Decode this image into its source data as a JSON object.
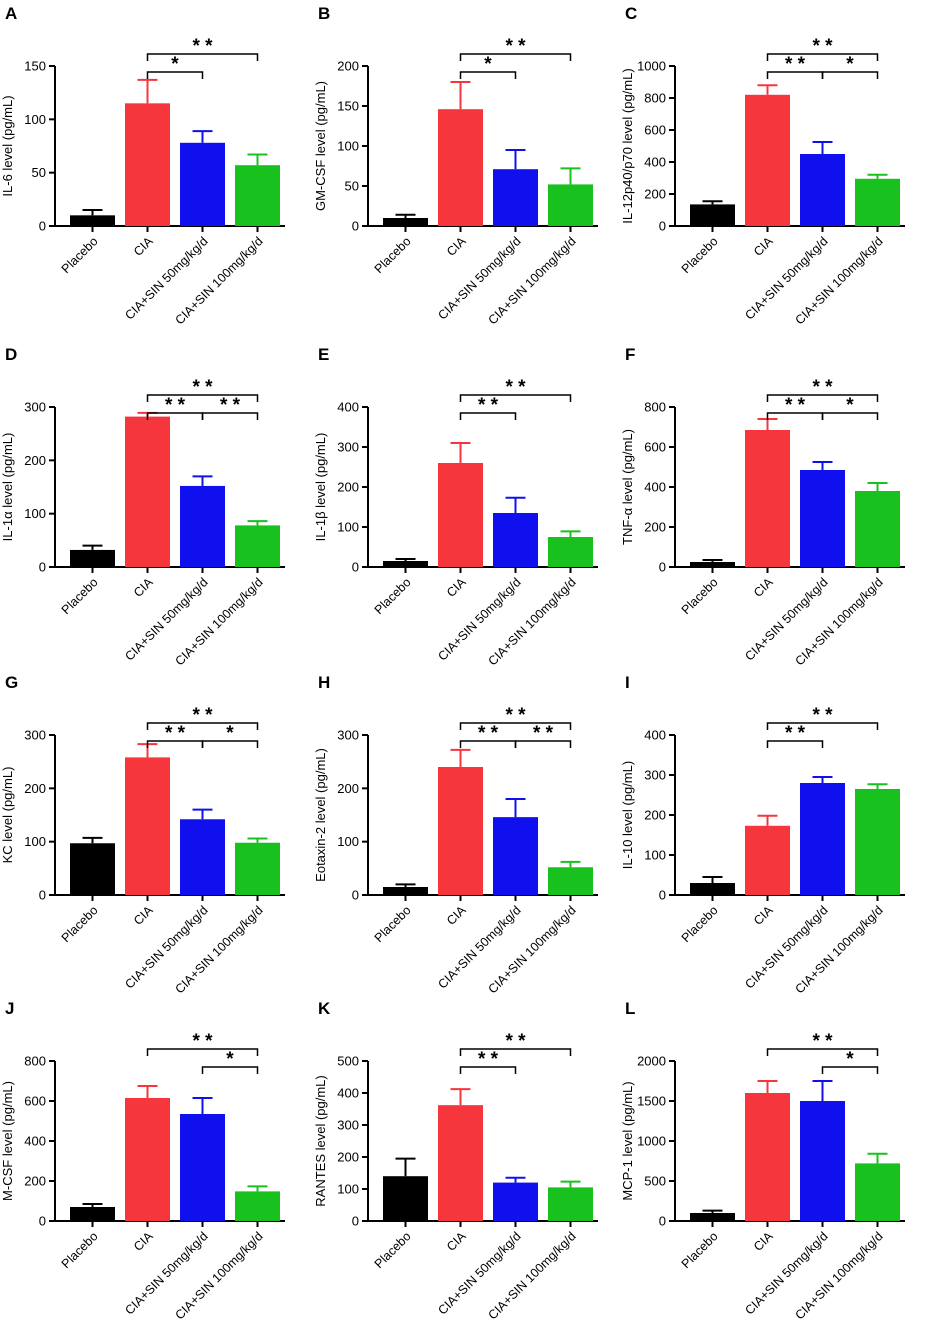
{
  "categories": [
    "Placebo",
    "CIA",
    "CIA+SIN 50mg/kg/d",
    "CIA+SIN 100mg/kg/d"
  ],
  "colors": [
    "#000000",
    "#f5373d",
    "#1010ee",
    "#18c11e"
  ],
  "chart_data": [
    {
      "type": "bar",
      "panel": "A",
      "ylabel": "IL-6 level (pg/mL)",
      "ylim": [
        0,
        150
      ],
      "ticks": [
        0,
        50,
        100,
        150
      ],
      "values": [
        10,
        115,
        78,
        57
      ],
      "errors": [
        5,
        22,
        11,
        10
      ],
      "significance": [
        {
          "from": 1,
          "to": 2,
          "label": "*"
        },
        {
          "from": 1,
          "to": 3,
          "label": "* *"
        }
      ]
    },
    {
      "type": "bar",
      "panel": "B",
      "ylabel": "GM-CSF level (pg/mL)",
      "ylim": [
        0,
        200
      ],
      "ticks": [
        0,
        50,
        100,
        150,
        200
      ],
      "values": [
        10,
        146,
        71,
        52
      ],
      "errors": [
        4,
        34,
        24,
        20
      ],
      "significance": [
        {
          "from": 1,
          "to": 2,
          "label": "*"
        },
        {
          "from": 1,
          "to": 3,
          "label": "* *"
        }
      ]
    },
    {
      "type": "bar",
      "panel": "C",
      "ylabel": "IL-12p40/p70 level (pg/mL)",
      "ylim": [
        0,
        1000
      ],
      "ticks": [
        0,
        200,
        400,
        600,
        800,
        1000
      ],
      "values": [
        135,
        820,
        450,
        295
      ],
      "errors": [
        20,
        60,
        75,
        25
      ],
      "significance": [
        {
          "from": 1,
          "to": 2,
          "label": "* *"
        },
        {
          "from": 2,
          "to": 3,
          "label": "*"
        },
        {
          "from": 1,
          "to": 3,
          "label": "* *"
        }
      ]
    },
    {
      "type": "bar",
      "panel": "D",
      "ylabel": "IL-1α level (pg/mL)",
      "ylim": [
        0,
        300
      ],
      "ticks": [
        0,
        100,
        200,
        300
      ],
      "values": [
        32,
        282,
        152,
        78
      ],
      "errors": [
        8,
        7,
        18,
        8
      ],
      "significance": [
        {
          "from": 1,
          "to": 2,
          "label": "* *"
        },
        {
          "from": 2,
          "to": 3,
          "label": "* *"
        },
        {
          "from": 1,
          "to": 3,
          "label": "* *"
        }
      ]
    },
    {
      "type": "bar",
      "panel": "E",
      "ylabel": "IL-1β level (pg/mL)",
      "ylim": [
        0,
        400
      ],
      "ticks": [
        0,
        100,
        200,
        300,
        400
      ],
      "values": [
        15,
        260,
        135,
        75
      ],
      "errors": [
        5,
        50,
        38,
        14
      ],
      "significance": [
        {
          "from": 1,
          "to": 2,
          "label": "* *"
        },
        {
          "from": 1,
          "to": 3,
          "label": "* *"
        }
      ]
    },
    {
      "type": "bar",
      "panel": "F",
      "ylabel": "TNF-α level (pg/mL)",
      "ylim": [
        0,
        800
      ],
      "ticks": [
        0,
        200,
        400,
        600,
        800
      ],
      "values": [
        25,
        685,
        485,
        380
      ],
      "errors": [
        10,
        55,
        40,
        40
      ],
      "significance": [
        {
          "from": 1,
          "to": 2,
          "label": "* *"
        },
        {
          "from": 2,
          "to": 3,
          "label": "*"
        },
        {
          "from": 1,
          "to": 3,
          "label": "* *"
        }
      ]
    },
    {
      "type": "bar",
      "panel": "G",
      "ylabel": "KC level (pg/mL)",
      "ylim": [
        0,
        300
      ],
      "ticks": [
        0,
        100,
        200,
        300
      ],
      "values": [
        97,
        258,
        142,
        98
      ],
      "errors": [
        10,
        25,
        18,
        8
      ],
      "significance": [
        {
          "from": 1,
          "to": 2,
          "label": "* *"
        },
        {
          "from": 2,
          "to": 3,
          "label": "*"
        },
        {
          "from": 1,
          "to": 3,
          "label": "* *"
        }
      ]
    },
    {
      "type": "bar",
      "panel": "H",
      "ylabel": "Eotaxin-2 level (pg/mL)",
      "ylim": [
        0,
        300
      ],
      "ticks": [
        0,
        100,
        200,
        300
      ],
      "values": [
        15,
        240,
        146,
        52
      ],
      "errors": [
        5,
        32,
        34,
        10
      ],
      "significance": [
        {
          "from": 1,
          "to": 2,
          "label": "* *"
        },
        {
          "from": 2,
          "to": 3,
          "label": "* *"
        },
        {
          "from": 1,
          "to": 3,
          "label": "* *"
        }
      ]
    },
    {
      "type": "bar",
      "panel": "I",
      "ylabel": "IL-10 level (pg/mL)",
      "ylim": [
        0,
        400
      ],
      "ticks": [
        0,
        100,
        200,
        300,
        400
      ],
      "values": [
        30,
        173,
        280,
        265
      ],
      "errors": [
        15,
        25,
        15,
        12
      ],
      "significance": [
        {
          "from": 1,
          "to": 2,
          "label": "* *"
        },
        {
          "from": 1,
          "to": 3,
          "label": "* *"
        }
      ]
    },
    {
      "type": "bar",
      "panel": "J",
      "ylabel": "M-CSF level (pg/mL)",
      "ylim": [
        0,
        800
      ],
      "ticks": [
        0,
        200,
        400,
        600,
        800
      ],
      "values": [
        70,
        615,
        535,
        148
      ],
      "errors": [
        15,
        60,
        80,
        25
      ],
      "significance": [
        {
          "from": 2,
          "to": 3,
          "label": "*"
        },
        {
          "from": 1,
          "to": 3,
          "label": "* *"
        }
      ]
    },
    {
      "type": "bar",
      "panel": "K",
      "ylabel": "RANTES level (pg/mL)",
      "ylim": [
        0,
        500
      ],
      "ticks": [
        0,
        100,
        200,
        300,
        400,
        500
      ],
      "values": [
        140,
        362,
        120,
        105
      ],
      "errors": [
        55,
        50,
        15,
        18
      ],
      "significance": [
        {
          "from": 1,
          "to": 2,
          "label": "* *"
        },
        {
          "from": 1,
          "to": 3,
          "label": "* *"
        }
      ]
    },
    {
      "type": "bar",
      "panel": "L",
      "ylabel": "MCP-1 level (pg/mL)",
      "ylim": [
        0,
        2000
      ],
      "ticks": [
        0,
        500,
        1000,
        1500,
        2000
      ],
      "values": [
        100,
        1600,
        1500,
        720
      ],
      "errors": [
        30,
        150,
        250,
        120
      ],
      "significance": [
        {
          "from": 2,
          "to": 3,
          "label": "*"
        },
        {
          "from": 1,
          "to": 3,
          "label": "* *"
        }
      ]
    }
  ]
}
